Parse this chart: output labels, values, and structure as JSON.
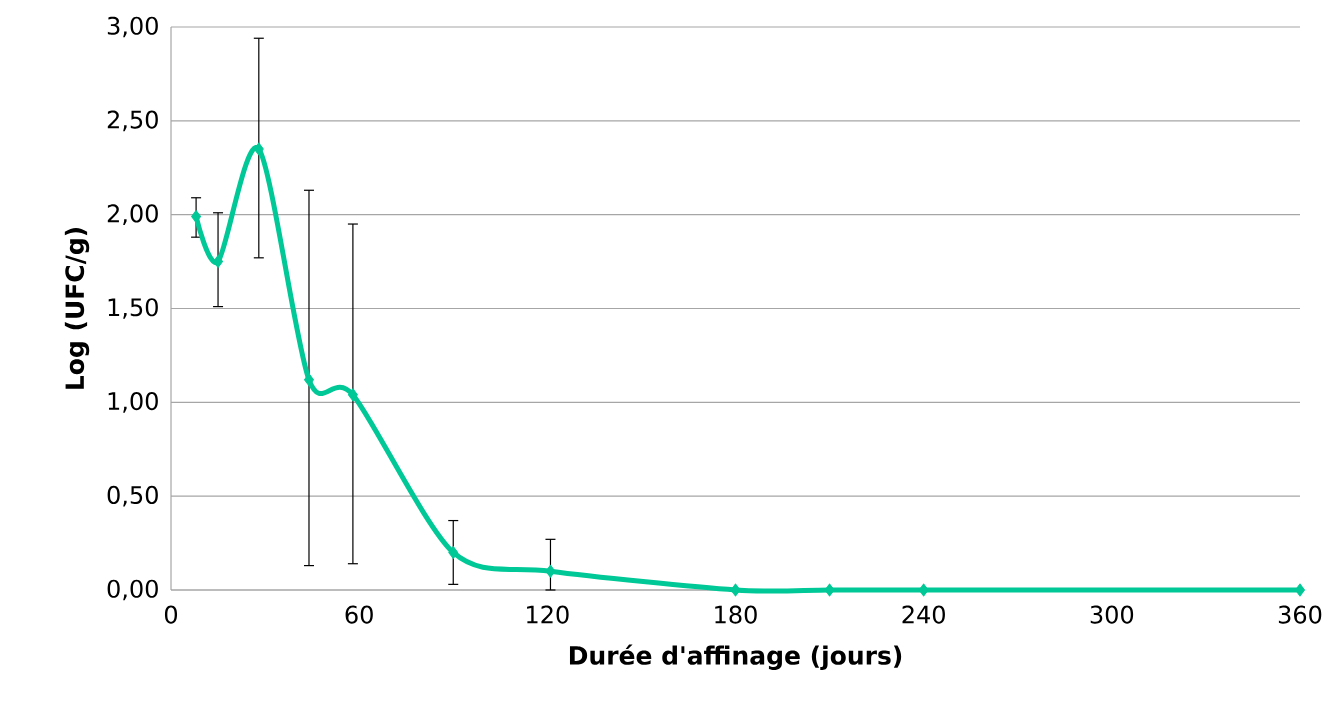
{
  "chart_data": {
    "type": "line",
    "xlabel": "Durée d'affinage (jours)",
    "ylabel": "Log (UFC/g)",
    "x": [
      8,
      15,
      28,
      44,
      58,
      90,
      121,
      180,
      210,
      240,
      360
    ],
    "values": [
      1.99,
      1.75,
      2.35,
      1.12,
      1.04,
      0.2,
      0.1,
      0,
      0,
      0,
      0
    ],
    "errors": [
      [
        1.88,
        2.09
      ],
      [
        1.51,
        2.01
      ],
      [
        1.77,
        2.94
      ],
      [
        0.13,
        2.13
      ],
      [
        0.14,
        1.95
      ],
      [
        0.03,
        0.37
      ],
      [
        0.0,
        0.27
      ],
      null,
      null,
      null,
      null
    ],
    "color": "#00c896",
    "marker": "diamond",
    "line_style": "solid",
    "grid": "y",
    "xlim": [
      0,
      360
    ],
    "xticks": [
      0,
      60,
      120,
      180,
      240,
      300,
      360
    ],
    "ylim": [
      0,
      3
    ],
    "yticks": [
      {
        "value": 0,
        "label": "0,00"
      },
      {
        "value": 0.5,
        "label": "0,50"
      },
      {
        "value": 1,
        "label": "1,00"
      },
      {
        "value": 1.5,
        "label": "1,50"
      },
      {
        "value": 2,
        "label": "2,00"
      },
      {
        "value": 2.5,
        "label": "2,50"
      },
      {
        "value": 3,
        "label": "3,00"
      }
    ]
  }
}
